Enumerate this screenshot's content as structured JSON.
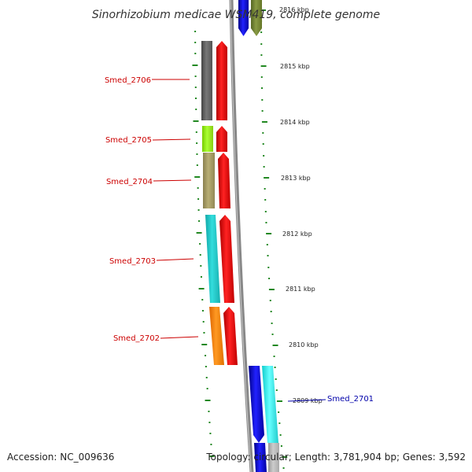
{
  "title": "Sinorhizobium medicae WSM419, complete genome",
  "footer": {
    "accession": "Accession: NC_009636",
    "topology": "Topology: circular; Length: 3,781,904 bp; Genes: 3,592"
  },
  "scale_label_partial": "2816 kbp",
  "scale_labels": [
    "2815 kbp",
    "2814 kbp",
    "2813 kbp",
    "2812 kbp",
    "2811 kbp",
    "2810 kbp",
    "2809 kbp"
  ],
  "genes": [
    {
      "id": "Smed_2706",
      "label": "Smed_2706",
      "color": "#666666",
      "label_color": "#cc0000"
    },
    {
      "id": "Smed_2705",
      "label": "Smed_2705",
      "color": "#99ee22",
      "label_color": "#cc0000"
    },
    {
      "id": "Smed_2704",
      "label": "Smed_2704",
      "color": "#aaa066",
      "label_color": "#cc0000"
    },
    {
      "id": "Smed_2703",
      "label": "Smed_2703",
      "color": "#22cccc",
      "label_color": "#cc0000"
    },
    {
      "id": "Smed_2702",
      "label": "Smed_2702",
      "color": "#ff8800",
      "label_color": "#cc0000"
    },
    {
      "id": "Smed_2701",
      "label": "Smed_2701",
      "color": "#22eeee",
      "label_color": "#0000aa"
    }
  ],
  "colors": {
    "strand_forward": "#ee1111",
    "strand_reverse": "#1111dd",
    "top_gene": "#778833",
    "backbone": "#888888",
    "tick": "#228822"
  }
}
